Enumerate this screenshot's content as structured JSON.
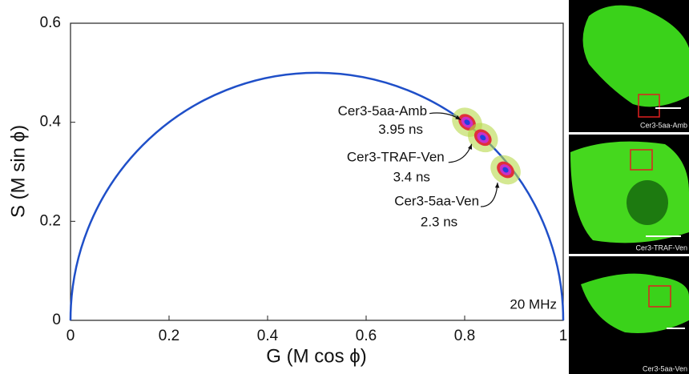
{
  "chart_data": {
    "type": "scatter",
    "x_label": "G (M cos ϕ)",
    "y_label": "S (M sin ϕ)",
    "annotation": "20 MHz",
    "xlim": [
      0,
      1
    ],
    "ylim": [
      0,
      0.6
    ],
    "xticks": [
      0,
      0.2,
      0.4,
      0.6,
      0.8,
      1
    ],
    "yticks": [
      0,
      0.2,
      0.4,
      0.6
    ],
    "curve_color": "#1f4fc8",
    "series": [
      {
        "name": "Cer3-5aa-Amb",
        "lifetime": "3.95 ns",
        "x": [
          0.805
        ],
        "values": [
          0.4
        ]
      },
      {
        "name": "Cer3-TRAF-Ven",
        "lifetime": "3.4 ns",
        "x": [
          0.837
        ],
        "values": [
          0.369
        ]
      },
      {
        "name": "Cer3-5aa-Ven",
        "lifetime": "2.3 ns",
        "x": [
          0.883
        ],
        "values": [
          0.304
        ]
      }
    ]
  },
  "images": [
    {
      "label": "Cer3-5aa-Amb"
    },
    {
      "label": "Cer3-TRAF-Ven"
    },
    {
      "label": "Cer3-5aa-Ven"
    }
  ]
}
